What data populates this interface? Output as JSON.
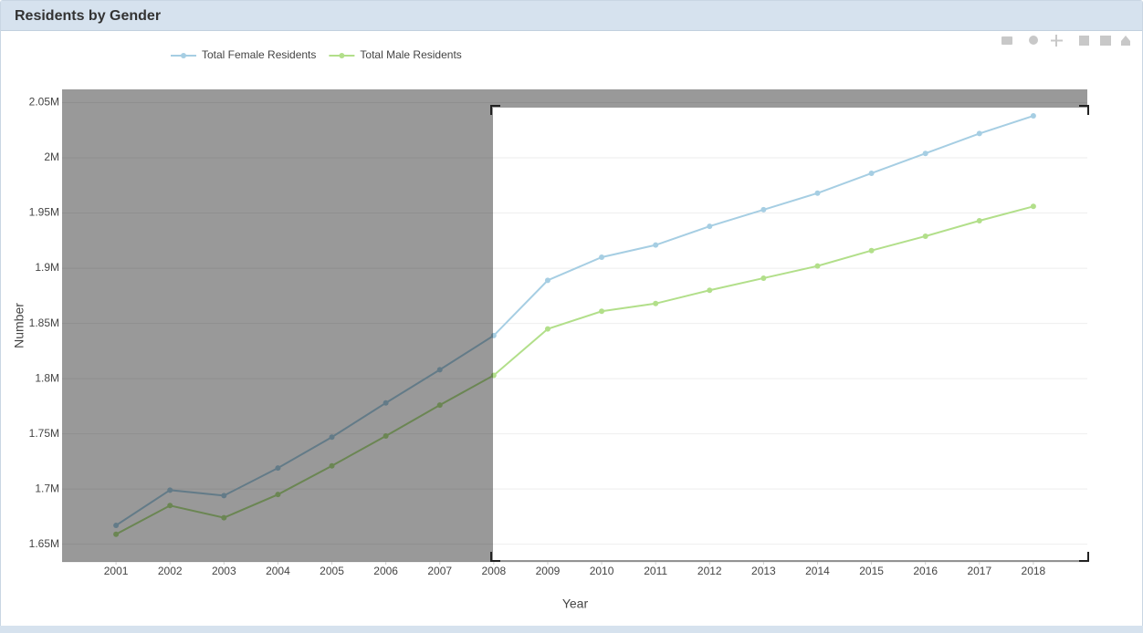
{
  "panel": {
    "title": "Residents by Gender"
  },
  "chart_data": {
    "type": "line",
    "xlabel": "Year",
    "ylabel": "Number",
    "x": [
      2001,
      2002,
      2003,
      2004,
      2005,
      2006,
      2007,
      2008,
      2009,
      2010,
      2011,
      2012,
      2013,
      2014,
      2015,
      2016,
      2017,
      2018
    ],
    "series": [
      {
        "name": "Total Female Residents",
        "color": "#a6cee3",
        "values": [
          1667000,
          1699000,
          1694000,
          1719000,
          1747000,
          1778000,
          1808000,
          1839000,
          1889000,
          1910000,
          1921000,
          1938000,
          1953000,
          1968000,
          1986000,
          2004000,
          2022000,
          2038000
        ]
      },
      {
        "name": "Total Male Residents",
        "color": "#b2df8a",
        "values": [
          1659000,
          1685000,
          1674000,
          1695000,
          1721000,
          1748000,
          1776000,
          1803000,
          1845000,
          1861000,
          1868000,
          1880000,
          1891000,
          1902000,
          1916000,
          1929000,
          1943000,
          1956000
        ]
      }
    ],
    "xlim": [
      2000,
      2019
    ],
    "xticks": [
      2001,
      2002,
      2003,
      2004,
      2005,
      2006,
      2007,
      2008,
      2009,
      2010,
      2011,
      2012,
      2013,
      2014,
      2015,
      2016,
      2017,
      2018
    ],
    "ylim": [
      1634000,
      2062000
    ],
    "yticks": [
      {
        "value": 1650000,
        "label": "1.65M"
      },
      {
        "value": 1700000,
        "label": "1.7M"
      },
      {
        "value": 1750000,
        "label": "1.75M"
      },
      {
        "value": 1800000,
        "label": "1.8M"
      },
      {
        "value": 1850000,
        "label": "1.85M"
      },
      {
        "value": 1900000,
        "label": "1.9M"
      },
      {
        "value": 1950000,
        "label": "1.95M"
      },
      {
        "value": 2000000,
        "label": "2M"
      },
      {
        "value": 2050000,
        "label": "2.05M"
      }
    ],
    "grid": true,
    "legend": "top"
  }
}
